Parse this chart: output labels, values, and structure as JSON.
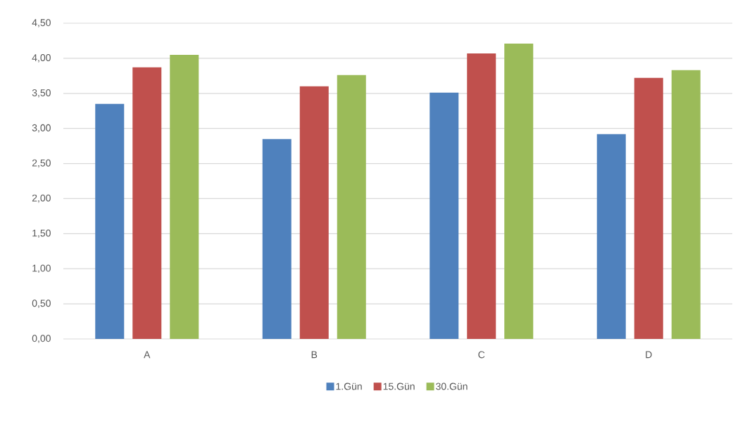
{
  "chart_data": {
    "type": "bar",
    "categories": [
      "A",
      "B",
      "C",
      "D"
    ],
    "series": [
      {
        "name": "1.Gün",
        "color": "#4f81bd",
        "values": [
          3.35,
          2.85,
          3.51,
          2.92
        ]
      },
      {
        "name": "15.Gün",
        "color": "#c0504d",
        "values": [
          3.87,
          3.6,
          4.07,
          3.72
        ]
      },
      {
        "name": "30.Gün",
        "color": "#9bbb59",
        "values": [
          4.05,
          3.76,
          4.21,
          3.83
        ]
      }
    ],
    "ylim": [
      0,
      4.5
    ],
    "yticks": [
      {
        "value": 0,
        "label": "0,00"
      },
      {
        "value": 0.5,
        "label": "0,50"
      },
      {
        "value": 1,
        "label": "1,00"
      },
      {
        "value": 1.5,
        "label": "1,50"
      },
      {
        "value": 2,
        "label": "2,00"
      },
      {
        "value": 2.5,
        "label": "2,50"
      },
      {
        "value": 3,
        "label": "3,00"
      },
      {
        "value": 3.5,
        "label": "3,50"
      },
      {
        "value": 4,
        "label": "4,00"
      },
      {
        "value": 4.5,
        "label": "4,50"
      }
    ],
    "grid": "y",
    "legend": "bottom"
  }
}
